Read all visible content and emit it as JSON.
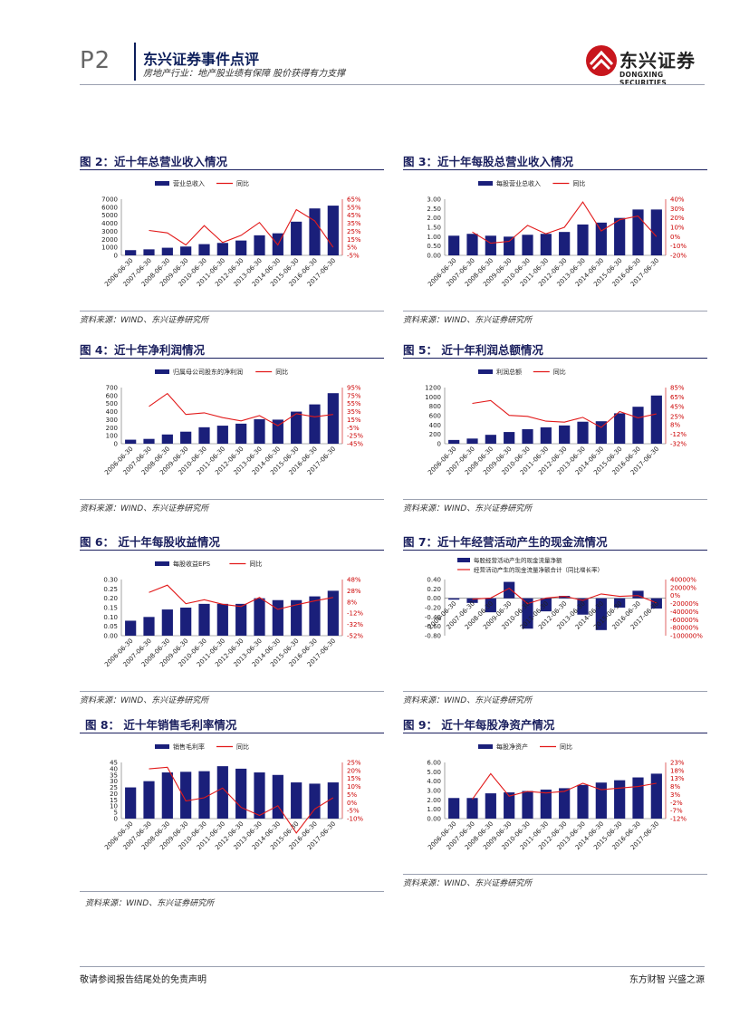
{
  "header": {
    "page": "P2",
    "title": "东兴证券事件点评",
    "subtitle": "房地产行业：地产股业绩有保障 股价获得有力支撑",
    "logo_cn": "东兴证券",
    "logo_en": "DONGXING SECURITIES"
  },
  "footer": {
    "disclaimer": "敬请参阅报告结尾处的免责声明",
    "slogan": "东方财智 兴盛之源"
  },
  "colors": {
    "bar": "#1a1f7a",
    "line": "#e21a1a",
    "title": "#1a1f5e"
  },
  "figures": [
    {
      "title": "图 2：近十年总营业收入情况",
      "source": "资料来源：WIND、东兴证券研究所",
      "chart_data": {
        "type": "bar",
        "categories": [
          "2006-06-30",
          "2007-06-30",
          "2008-06-30",
          "2009-06-30",
          "2010-06-30",
          "2011-06-30",
          "2012-06-30",
          "2013-06-30",
          "2014-06-30",
          "2015-06-30",
          "2016-06-30",
          "2017-06-30"
        ],
        "series": [
          {
            "name": "营业总收入",
            "type": "bar",
            "axis": "left",
            "values": [
              650,
              750,
              950,
              1100,
              1400,
              1550,
              1850,
              2500,
              2750,
              4200,
              5850,
              6200
            ]
          },
          {
            "name": "同比",
            "type": "line",
            "axis": "right",
            "values": [
              null,
              26,
              23,
              8,
              32,
              11,
              20,
              36,
              8,
              52,
              38,
              5
            ]
          }
        ],
        "left_axis": {
          "min": 0,
          "max": 7000,
          "ticks": [
            "7000",
            "6000",
            "5000",
            "4000",
            "3000",
            "2000",
            "1000",
            "0"
          ]
        },
        "right_axis": {
          "min": -5,
          "max": 65,
          "ticks": [
            "65%",
            "55%",
            "45%",
            "35%",
            "25%",
            "15%",
            "5%",
            "-5%"
          ]
        }
      }
    },
    {
      "title": "图 3：近十年每股总营业收入情况",
      "source": "资料来源：WIND、东兴证券研究所",
      "chart_data": {
        "type": "bar",
        "categories": [
          "2006-06-30",
          "2007-06-30",
          "2008-06-30",
          "2009-06-30",
          "2010-06-30",
          "2011-06-30",
          "2012-06-30",
          "2013-06-30",
          "2014-06-30",
          "2015-06-30",
          "2016-06-30",
          "2017-06-30"
        ],
        "series": [
          {
            "name": "每股营业总收入",
            "type": "bar",
            "axis": "left",
            "values": [
              1.05,
              1.15,
              1.05,
              1.0,
              1.1,
              1.15,
              1.25,
              1.65,
              1.75,
              2.0,
              2.45,
              2.45
            ]
          },
          {
            "name": "同比",
            "type": "line",
            "axis": "right",
            "values": [
              null,
              5,
              -7,
              -5,
              12,
              3,
              10,
              37,
              6,
              18,
              22,
              0
            ]
          }
        ],
        "left_axis": {
          "min": 0,
          "max": 3.0,
          "ticks": [
            "3.00",
            "2.50",
            "2.00",
            "1.50",
            "1.00",
            "0.50",
            "0.00"
          ]
        },
        "right_axis": {
          "min": -20,
          "max": 40,
          "ticks": [
            "40%",
            "30%",
            "20%",
            "10%",
            "0%",
            "-10%",
            "-20%"
          ]
        }
      }
    },
    {
      "title": "图 4：近十年净利润情况",
      "source": "资料来源：WIND、东兴证券研究所",
      "chart_data": {
        "type": "bar",
        "categories": [
          "2006-06-30",
          "2007-06-30",
          "2008-06-30",
          "2009-06-30",
          "2010-06-30",
          "2011-06-30",
          "2012-06-30",
          "2013-06-30",
          "2014-06-30",
          "2015-06-30",
          "2016-06-30",
          "2017-06-30"
        ],
        "series": [
          {
            "name": "归属母公司股东的净利润",
            "type": "bar",
            "axis": "left",
            "values": [
              50,
              60,
              115,
              150,
              205,
              225,
              250,
              305,
              300,
              400,
              490,
              630
            ]
          },
          {
            "name": "同比",
            "type": "line",
            "axis": "right",
            "values": [
              null,
              48,
              80,
              28,
              32,
              20,
              12,
              25,
              0,
              30,
              22,
              28
            ]
          }
        ],
        "left_axis": {
          "min": 0,
          "max": 700,
          "ticks": [
            "700",
            "600",
            "500",
            "400",
            "300",
            "200",
            "100",
            "0"
          ]
        },
        "right_axis": {
          "min": -45,
          "max": 95,
          "ticks": [
            "95%",
            "75%",
            "55%",
            "35%",
            "15%",
            "-5%",
            "-25%",
            "-45%"
          ]
        }
      }
    },
    {
      "title": "图 5： 近十年利润总额情况",
      "source": "资料来源：WIND、东兴证券研究所",
      "chart_data": {
        "type": "bar",
        "categories": [
          "2006-06-30",
          "2007-06-30",
          "2008-06-30",
          "2009-06-30",
          "2010-06-30",
          "2011-06-30",
          "2012-06-30",
          "2013-06-30",
          "2014-06-30",
          "2015-06-30",
          "2016-06-30",
          "2017-06-30"
        ],
        "series": [
          {
            "name": "利润总额",
            "type": "bar",
            "axis": "left",
            "values": [
              80,
              110,
              190,
              250,
              310,
              350,
              390,
              470,
              480,
              650,
              790,
              1030
            ]
          },
          {
            "name": "同比",
            "type": "line",
            "axis": "right",
            "values": [
              null,
              52,
              58,
              27,
              25,
              15,
              13,
              23,
              2,
              35,
              22,
              30
            ]
          }
        ],
        "left_axis": {
          "min": 0,
          "max": 1200,
          "ticks": [
            "1200",
            "1000",
            "800",
            "600",
            "400",
            "200",
            "0"
          ]
        },
        "right_axis": {
          "min": -32,
          "max": 85,
          "ticks": [
            "85%",
            "65%",
            "45%",
            "25%",
            "8%",
            "-12%",
            "-32%"
          ]
        }
      }
    },
    {
      "title": "图 6： 近十年每股收益情况",
      "source": "资料来源：WIND、东兴证券研究所",
      "chart_data": {
        "type": "bar",
        "categories": [
          "2006-06-30",
          "2007-06-30",
          "2008-06-30",
          "2009-06-30",
          "2010-06-30",
          "2011-06-30",
          "2012-06-30",
          "2013-06-30",
          "2014-06-30",
          "2015-06-30",
          "2016-06-30",
          "2017-06-30"
        ],
        "series": [
          {
            "name": "每股收益EPS",
            "type": "bar",
            "axis": "left",
            "values": [
              0.08,
              0.1,
              0.14,
              0.15,
              0.17,
              0.17,
              0.17,
              0.2,
              0.19,
              0.19,
              0.21,
              0.24
            ]
          },
          {
            "name": "同比",
            "type": "line",
            "axis": "right",
            "values": [
              null,
              25,
              38,
              5,
              12,
              4,
              0,
              16,
              -5,
              3,
              10,
              16
            ]
          }
        ],
        "left_axis": {
          "min": 0,
          "max": 0.3,
          "ticks": [
            "0.30",
            "0.25",
            "0.20",
            "0.15",
            "0.10",
            "0.05",
            "0.00"
          ]
        },
        "right_axis": {
          "min": -52,
          "max": 48,
          "ticks": [
            "48%",
            "28%",
            "8%",
            "-12%",
            "-32%",
            "-52%"
          ]
        }
      }
    },
    {
      "title": "图 7：近十年经营活动产生的现金流情况",
      "source": "资料来源：WIND、东兴证券研究所",
      "chart_data": {
        "type": "bar",
        "categories": [
          "2006-06-30",
          "2007-06-30",
          "2008-06-30",
          "2009-06-30",
          "2010-06-30",
          "2011-06-30",
          "2012-06-30",
          "2013-06-30",
          "2014-06-30",
          "2015-06-30",
          "2016-06-30",
          "2017-06-30"
        ],
        "series": [
          {
            "name": "每股经营活动产生的现金流量净额",
            "type": "bar",
            "axis": "left",
            "values": [
              -0.03,
              -0.1,
              -0.3,
              0.35,
              -0.65,
              -0.28,
              0.05,
              -0.35,
              -0.68,
              -0.2,
              0.16,
              -0.22
            ]
          },
          {
            "name": "经营活动产生的现金流量净额合计（同比增长率）",
            "type": "line",
            "axis": "right",
            "values": [
              null,
              -9000,
              -6000,
              18000,
              -20000,
              -6000,
              -2000,
              -12000,
              4000,
              -2000,
              0,
              -18000
            ]
          }
        ],
        "left_axis": {
          "min": -0.8,
          "max": 0.4,
          "ticks": [
            "0.40",
            "0.20",
            "0.00",
            "-0.20",
            "-0.40",
            "-0.60",
            "-0.80"
          ]
        },
        "right_axis": {
          "min": -100000,
          "max": 40000,
          "ticks": [
            "40000%",
            "20000%",
            "0%",
            "-20000%",
            "-40000%",
            "-60000%",
            "-80000%",
            "-100000%"
          ]
        }
      }
    },
    {
      "title": "图 8： 近十年销售毛利率情况",
      "source": "资料来源：WIND、东兴证券研究所",
      "chart_data": {
        "type": "bar",
        "categories": [
          "2006-06-30",
          "2007-06-30",
          "2008-06-30",
          "2009-06-30",
          "2010-06-30",
          "2011-06-30",
          "2012-06-30",
          "2013-06-30",
          "2014-06-30",
          "2015-06-30",
          "2016-06-30",
          "2017-06-30"
        ],
        "series": [
          {
            "name": "销售毛利率",
            "type": "bar",
            "axis": "left",
            "values": [
              25,
              30,
              37,
              37.5,
              38,
              42,
              40,
              37,
              35,
              29,
              28,
              29
            ]
          },
          {
            "name": "同比",
            "type": "line",
            "axis": "right",
            "values": [
              null,
              21,
              22,
              1,
              3,
              9,
              -3,
              -8,
              -2,
              -19,
              -4,
              3
            ]
          }
        ],
        "left_axis": {
          "min": 0,
          "max": 45,
          "ticks": [
            "45",
            "40",
            "35",
            "30",
            "25",
            "20",
            "15",
            "10",
            "5",
            "0"
          ]
        },
        "right_axis": {
          "min": -10,
          "max": 25,
          "ticks": [
            "25%",
            "20%",
            "15%",
            "10%",
            "5%",
            "0%",
            "-5%",
            "-10%"
          ]
        }
      }
    },
    {
      "title": "图 9： 近十年每股净资产情况",
      "source": "资料来源：WIND、东兴证券研究所",
      "chart_data": {
        "type": "bar",
        "categories": [
          "2006-06-30",
          "2007-06-30",
          "2008-06-30",
          "2009-06-30",
          "2010-06-30",
          "2011-06-30",
          "2012-06-30",
          "2013-06-30",
          "2014-06-30",
          "2015-06-30",
          "2016-06-30",
          "2017-06-30"
        ],
        "series": [
          {
            "name": "每股净资产",
            "type": "bar",
            "axis": "left",
            "values": [
              2.2,
              2.2,
              2.7,
              2.8,
              2.95,
              3.1,
              3.25,
              3.6,
              3.85,
              4.1,
              4.4,
              4.8
            ]
          },
          {
            "name": "同比",
            "type": "line",
            "axis": "right",
            "values": [
              null,
              0,
              16,
              2,
              5,
              4,
              5,
              10,
              6,
              7,
              8,
              10
            ]
          }
        ],
        "left_axis": {
          "min": 0,
          "max": 6.0,
          "ticks": [
            "6.00",
            "5.00",
            "4.00",
            "3.00",
            "2.00",
            "1.00",
            "0.00"
          ]
        },
        "right_axis": {
          "min": -12,
          "max": 23,
          "ticks": [
            "23%",
            "18%",
            "13%",
            "8%",
            "3%",
            "-2%",
            "-7%",
            "-12%"
          ]
        }
      }
    }
  ]
}
